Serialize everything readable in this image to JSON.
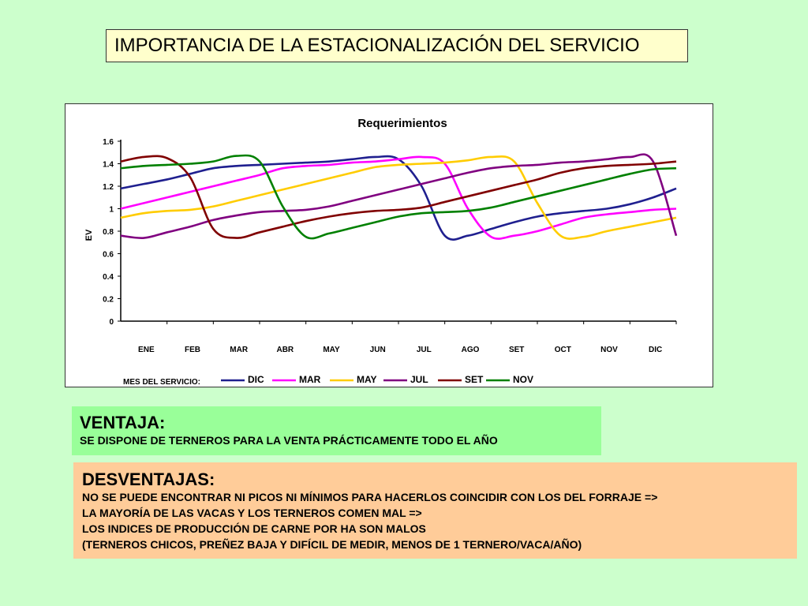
{
  "header": {
    "title": "IMPORTANCIA DE LA ESTACIONALIZACIÓN DEL SERVICIO"
  },
  "chart_data": {
    "type": "line",
    "title": "Requerimientos",
    "ylabel": "EV",
    "xlabel": "",
    "ylim": [
      0,
      1.6
    ],
    "yticks": [
      "0",
      "0.2",
      "0.4",
      "0.6",
      "0.8",
      "1",
      "1.2",
      "1.4",
      "1.6"
    ],
    "categories": [
      "ENE",
      "FEB",
      "MAR",
      "ABR",
      "MAY",
      "JUN",
      "JUL",
      "AGO",
      "SET",
      "OCT",
      "NOV",
      "DIC"
    ],
    "x": [
      0,
      0.5,
      1,
      1.5,
      2,
      2.5,
      3,
      3.5,
      4,
      4.5,
      5,
      5.5,
      6,
      6.5,
      7,
      7.5,
      8,
      8.5,
      9,
      9.5,
      10,
      10.5,
      11,
      11.5,
      12
    ],
    "legend_prefix": "MES DEL SERVICIO:",
    "legend_position": "bottom",
    "grid": false,
    "series": [
      {
        "name": "DIC",
        "color": "#1f1f8f",
        "values": [
          1.18,
          1.22,
          1.26,
          1.31,
          1.36,
          1.38,
          1.39,
          1.4,
          1.41,
          1.42,
          1.44,
          1.46,
          1.44,
          1.2,
          0.76,
          0.76,
          0.82,
          0.88,
          0.93,
          0.96,
          0.98,
          1.0,
          1.04,
          1.1,
          1.18
        ]
      },
      {
        "name": "MAR",
        "color": "#ff00ff",
        "values": [
          1.0,
          1.05,
          1.1,
          1.15,
          1.2,
          1.25,
          1.3,
          1.36,
          1.38,
          1.39,
          1.41,
          1.42,
          1.44,
          1.46,
          1.4,
          1.0,
          0.75,
          0.76,
          0.8,
          0.86,
          0.92,
          0.95,
          0.97,
          0.99,
          1.0
        ]
      },
      {
        "name": "MAY",
        "color": "#ffcc00",
        "values": [
          0.92,
          0.96,
          0.98,
          0.99,
          1.02,
          1.07,
          1.12,
          1.17,
          1.22,
          1.27,
          1.32,
          1.37,
          1.39,
          1.4,
          1.41,
          1.43,
          1.46,
          1.42,
          1.05,
          0.76,
          0.75,
          0.8,
          0.84,
          0.88,
          0.92
        ]
      },
      {
        "name": "JUL",
        "color": "#800080",
        "values": [
          0.76,
          0.74,
          0.79,
          0.84,
          0.9,
          0.94,
          0.97,
          0.98,
          0.99,
          1.02,
          1.07,
          1.12,
          1.17,
          1.22,
          1.27,
          1.32,
          1.36,
          1.38,
          1.39,
          1.41,
          1.42,
          1.44,
          1.46,
          1.42,
          0.76
        ]
      },
      {
        "name": "SET",
        "color": "#800000",
        "values": [
          1.42,
          1.46,
          1.45,
          1.28,
          0.82,
          0.74,
          0.79,
          0.84,
          0.89,
          0.93,
          0.96,
          0.98,
          0.99,
          1.01,
          1.06,
          1.11,
          1.16,
          1.21,
          1.26,
          1.32,
          1.36,
          1.38,
          1.39,
          1.4,
          1.42
        ]
      },
      {
        "name": "NOV",
        "color": "#008000",
        "values": [
          1.36,
          1.38,
          1.39,
          1.4,
          1.42,
          1.47,
          1.42,
          1.02,
          0.75,
          0.78,
          0.83,
          0.88,
          0.93,
          0.96,
          0.97,
          0.98,
          1.01,
          1.06,
          1.11,
          1.16,
          1.21,
          1.26,
          1.31,
          1.35,
          1.36
        ]
      }
    ]
  },
  "ventaja": {
    "heading": "VENTAJA:",
    "text": "SE DISPONE DE TERNEROS PARA LA VENTA PRÁCTICAMENTE TODO EL AÑO"
  },
  "desventajas": {
    "heading": "DESVENTAJAS:",
    "lines": [
      "NO SE PUEDE ENCONTRAR NI PICOS NI MÍNIMOS PARA HACERLOS COINCIDIR CON LOS DEL FORRAJE =>",
      "LA MAYORÍA DE LAS VACAS Y LOS TERNEROS COMEN MAL =>",
      "LOS INDICES DE PRODUCCIÓN DE CARNE POR HA SON MALOS",
      "(TERNEROS CHICOS, PREÑEZ BAJA Y DIFÍCIL DE MEDIR, MENOS DE 1 TERNERO/VACA/AÑO)"
    ]
  }
}
